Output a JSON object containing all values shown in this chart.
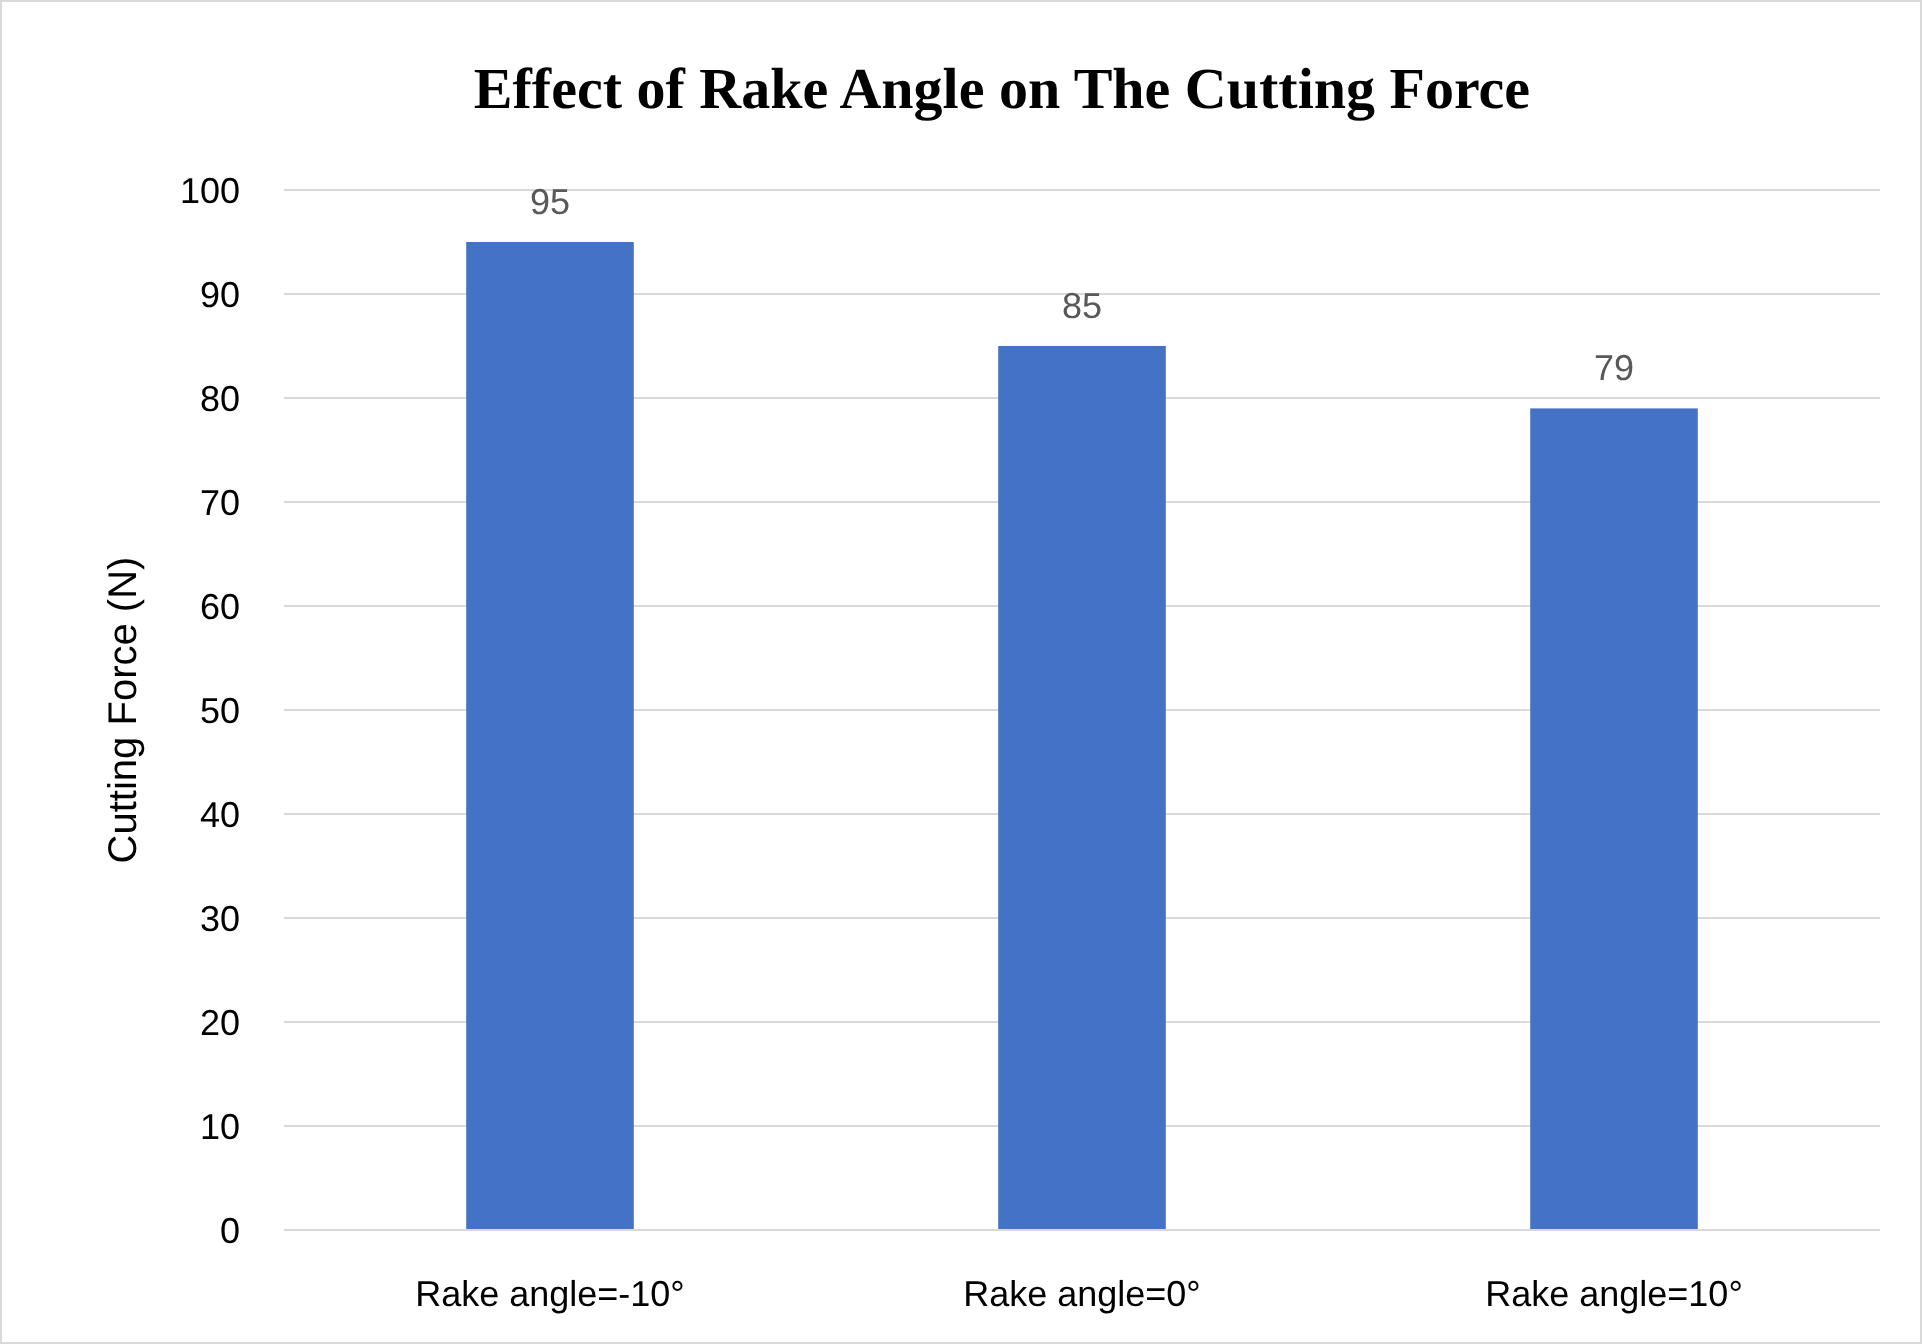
{
  "chart_data": {
    "type": "bar",
    "title": "Effect of Rake Angle on The Cutting Force",
    "ylabel": "Cutting Force (N)",
    "categories": [
      "Rake angle=-10°",
      "Rake angle=0°",
      "Rake angle=10°"
    ],
    "values": [
      95,
      85,
      79
    ],
    "color": "#4472c4",
    "ylim": [
      0,
      100
    ],
    "yticks": [
      0,
      10,
      20,
      30,
      40,
      50,
      60,
      70,
      80,
      90,
      100
    ],
    "grid": "y",
    "data_labels": true
  }
}
